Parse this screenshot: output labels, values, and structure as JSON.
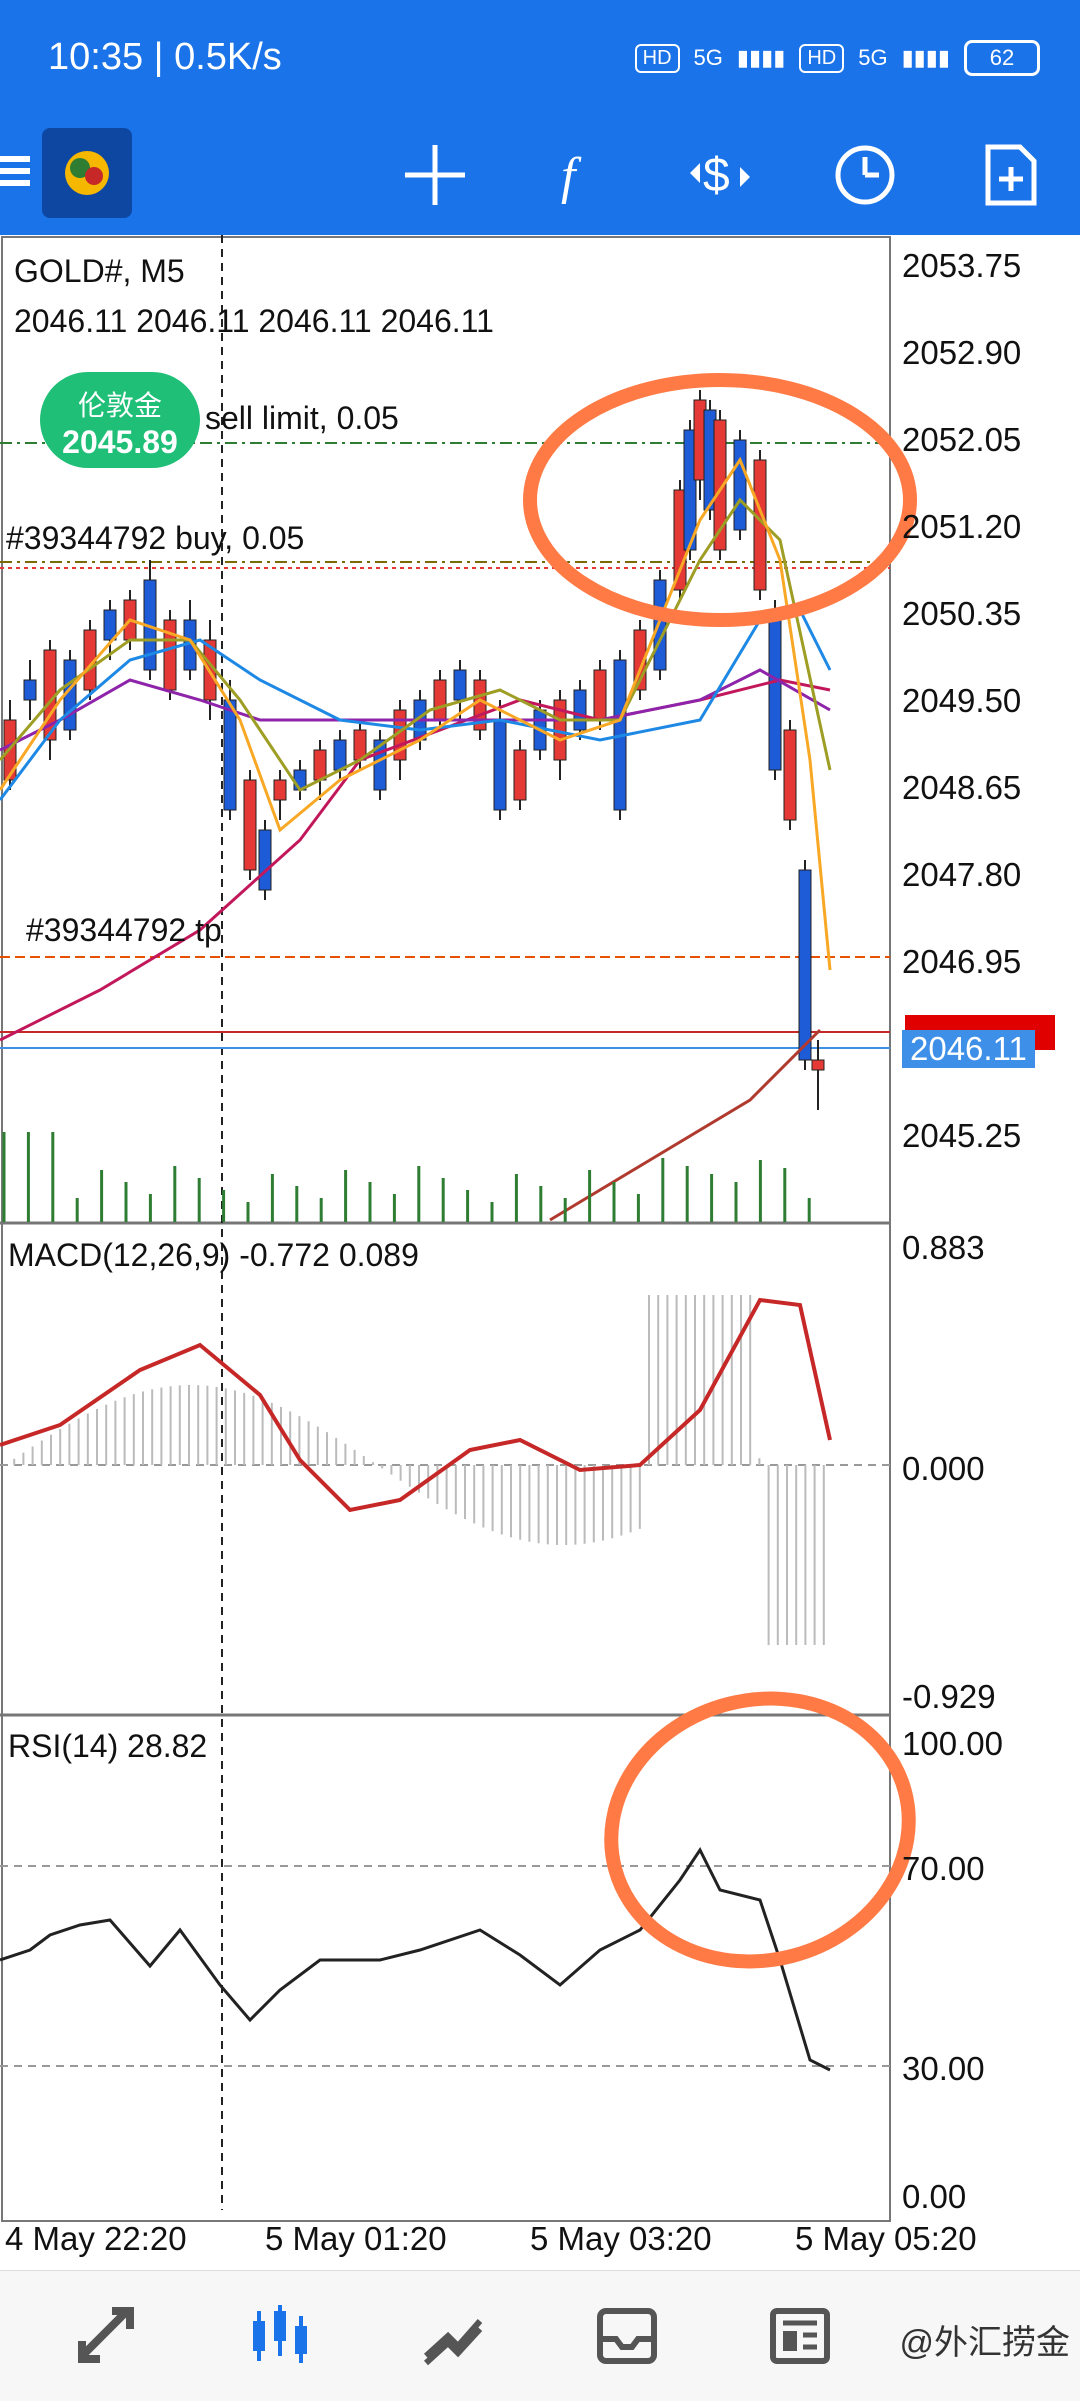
{
  "status": {
    "time": "10:35 | 0.5K/s",
    "battery": "62",
    "hd1": "HD",
    "net1": "5G",
    "hd2": "HD",
    "net2": "5G"
  },
  "toolbar": {
    "icons": [
      "crosshair-icon",
      "function-icon",
      "trade-icon",
      "clock-icon",
      "new-order-icon"
    ]
  },
  "chart": {
    "symbol": "GOLD#, M5",
    "ohlc": "2046.11 2046.11 2046.11 2046.11",
    "order_sell": "sell limit, 0.05",
    "order_buy": "#39344792 buy, 0.05",
    "order_tp": "#39344792 tp",
    "current_price": "2046.11",
    "pill_label": "伦敦金",
    "pill_price": "2045.89",
    "price_axis": [
      "2053.75",
      "2052.90",
      "2052.05",
      "2051.20",
      "2050.35",
      "2049.50",
      "2048.65",
      "2047.80",
      "2046.95",
      "2046.11",
      "2045.25"
    ],
    "time_axis": [
      "4 May 22:20",
      "5 May 01:20",
      "5 May 03:20",
      "5 May 05:20"
    ]
  },
  "macd": {
    "label": "MACD(12,26,9) -0.772 0.089",
    "axis": [
      "0.883",
      "0.000",
      "-0.929"
    ]
  },
  "rsi": {
    "label": "RSI(14) 28.82",
    "axis": [
      "100.00",
      "70.00",
      "30.00",
      "0.00"
    ]
  },
  "watermark": "@外汇捞金",
  "colors": {
    "brand": "#1a73e8",
    "bull": "#e53935",
    "bear": "#1e5bd6",
    "annotation": "#ff7a45"
  }
}
